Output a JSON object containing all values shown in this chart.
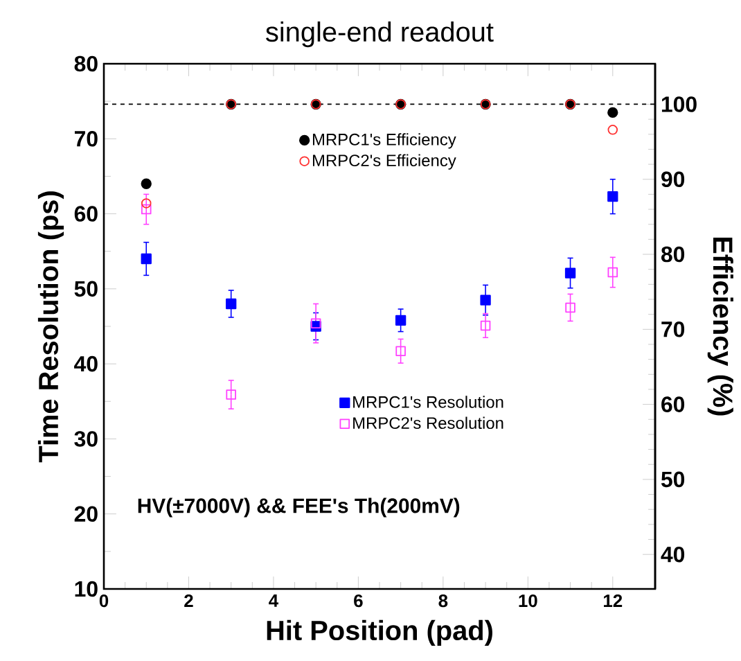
{
  "chart_data": {
    "type": "scatter",
    "title": "single-end readout",
    "xlabel": "Hit Position (pad)",
    "ylabel": "Time Resolution (ps)",
    "y2label": "Efficiency (%)",
    "annotations": [
      "HV(±7000V) && FEE's Th(200mV)"
    ],
    "x": [
      1,
      3,
      5,
      7,
      9,
      11,
      12
    ],
    "xlim": [
      0,
      13
    ],
    "xticks": [
      0,
      2,
      4,
      6,
      8,
      10,
      12
    ],
    "ylim": [
      10,
      80
    ],
    "yticks": [
      10,
      20,
      30,
      40,
      50,
      60,
      70,
      80
    ],
    "y2lim": [
      35.4,
      105.4
    ],
    "y2ticks": [
      40,
      50,
      60,
      70,
      80,
      90,
      100
    ],
    "legend": "top",
    "ref_lines": [
      {
        "axis": "y2",
        "value": 100,
        "line_style": "dashed",
        "color": "#000000"
      }
    ],
    "series": [
      {
        "name": "MRPC1's Efficiency",
        "axis": "y2",
        "color": "#000000",
        "marker": "circle",
        "values": [
          89.4,
          100,
          100,
          100,
          100,
          100,
          98.9
        ]
      },
      {
        "name": "MRPC2's Efficiency",
        "axis": "y2",
        "color": "#ff3030",
        "marker": "circle",
        "values": [
          86.8,
          100,
          100,
          100,
          100,
          100,
          96.6
        ]
      },
      {
        "name": "MRPC1's Resolution",
        "color": "#0000ff",
        "marker": "square",
        "values": [
          54.0,
          48.0,
          45.0,
          45.8,
          48.5,
          52.1,
          62.3
        ],
        "errors": [
          2.2,
          1.8,
          1.8,
          1.5,
          2.0,
          2.0,
          2.3
        ]
      },
      {
        "name": "MRPC2's Resolution",
        "color": "#ff40ff",
        "marker": "square",
        "values": [
          60.6,
          35.9,
          45.4,
          41.7,
          45.1,
          47.5,
          52.2
        ],
        "errors": [
          2.0,
          1.9,
          2.6,
          1.6,
          1.6,
          1.8,
          2.0
        ]
      }
    ]
  }
}
